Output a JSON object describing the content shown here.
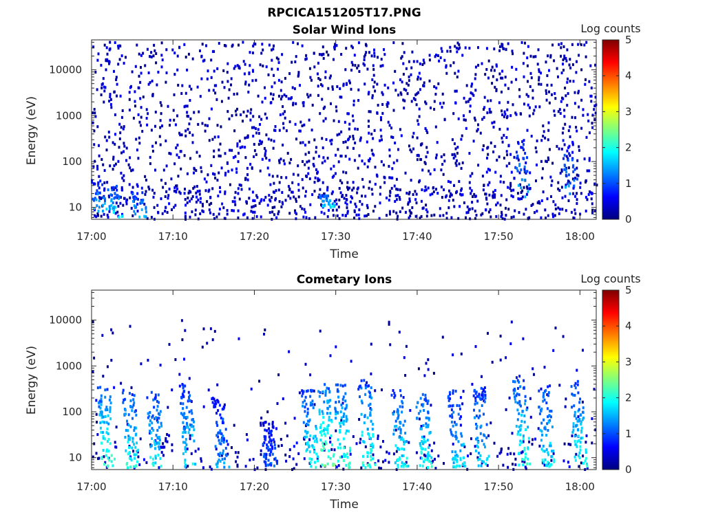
{
  "figure": {
    "title": "RPCICA151205T17.PNG"
  },
  "colormap": {
    "name": "jet",
    "stops": [
      "#00007f",
      "#0000ff",
      "#007fff",
      "#00ffff",
      "#7fff7f",
      "#ffff00",
      "#ff7f00",
      "#ff0000",
      "#7f0000"
    ]
  },
  "chart_data": [
    {
      "type": "heatmap",
      "title": "Solar Wind Ions",
      "xlabel": "Time",
      "ylabel": "Energy (eV)",
      "x_range": [
        "17:00",
        "18:02"
      ],
      "x_ticks": [
        "17:00",
        "17:10",
        "17:20",
        "17:30",
        "17:40",
        "17:50",
        "18:00"
      ],
      "y_scale": "log",
      "y_range": [
        5.5,
        45000
      ],
      "y_ticks": [
        {
          "value": 10,
          "label": "10"
        },
        {
          "value": 100,
          "label": "100"
        },
        {
          "value": 1000,
          "label": "1000"
        },
        {
          "value": 10000,
          "label": "10000"
        }
      ],
      "colorbar": {
        "label": "Log counts",
        "range": [
          0,
          5
        ],
        "ticks": [
          "0",
          "1",
          "2",
          "3",
          "4",
          "5"
        ]
      },
      "background_noise": {
        "typical_log_counts": [
          0,
          0.6
        ],
        "energy_range": [
          5.5,
          40000
        ]
      },
      "features": [
        {
          "time": "17:01",
          "energy_range": [
            8,
            40
          ],
          "log_counts": 1.6
        },
        {
          "time": "17:03",
          "energy_range": [
            6,
            30
          ],
          "log_counts": 1.8
        },
        {
          "time": "17:06",
          "energy_range": [
            6,
            30
          ],
          "log_counts": 1.5
        },
        {
          "time": "17:29",
          "energy_range": [
            10,
            20
          ],
          "log_counts": 1.8
        },
        {
          "time": "17:53",
          "energy_range": [
            15,
            300
          ],
          "log_counts": 1.6
        },
        {
          "time": "17:59",
          "energy_range": [
            15,
            300
          ],
          "log_counts": 1.4
        }
      ]
    },
    {
      "type": "heatmap",
      "title": "Cometary Ions",
      "xlabel": "Time",
      "ylabel": "Energy (eV)",
      "x_range": [
        "17:00",
        "18:02"
      ],
      "x_ticks": [
        "17:00",
        "17:10",
        "17:20",
        "17:30",
        "17:40",
        "17:50",
        "18:00"
      ],
      "y_scale": "log",
      "y_range": [
        5.5,
        45000
      ],
      "y_ticks": [
        {
          "value": 10,
          "label": "10"
        },
        {
          "value": 100,
          "label": "100"
        },
        {
          "value": 1000,
          "label": "1000"
        },
        {
          "value": 10000,
          "label": "10000"
        }
      ],
      "colorbar": {
        "label": "Log counts",
        "range": [
          0,
          5
        ],
        "ticks": [
          "0",
          "1",
          "2",
          "3",
          "4",
          "5"
        ]
      },
      "background_noise": {
        "typical_log_counts": [
          0,
          0.6
        ],
        "energy_range": [
          5.5,
          10000
        ]
      },
      "features": [
        {
          "time": "17:02",
          "energy_range": [
            6,
            400
          ],
          "log_counts": 2.2
        },
        {
          "time": "17:05",
          "energy_range": [
            6,
            300
          ],
          "log_counts": 2.0
        },
        {
          "time": "17:08",
          "energy_range": [
            6,
            300
          ],
          "log_counts": 1.9
        },
        {
          "time": "17:12",
          "energy_range": [
            6,
            400
          ],
          "log_counts": 1.8
        },
        {
          "time": "17:16",
          "energy_range": [
            6,
            200
          ],
          "log_counts": 1.4
        },
        {
          "time": "17:22",
          "energy_range": [
            6,
            60
          ],
          "log_counts": 1.1
        },
        {
          "time": "17:27",
          "energy_range": [
            6,
            300
          ],
          "log_counts": 2.0
        },
        {
          "time": "17:29",
          "energy_range": [
            6,
            400
          ],
          "log_counts": 2.4
        },
        {
          "time": "17:31",
          "energy_range": [
            6,
            400
          ],
          "log_counts": 2.2
        },
        {
          "time": "17:34",
          "energy_range": [
            6,
            500
          ],
          "log_counts": 2.1
        },
        {
          "time": "17:38",
          "energy_range": [
            6,
            300
          ],
          "log_counts": 1.9
        },
        {
          "time": "17:41",
          "energy_range": [
            6,
            300
          ],
          "log_counts": 2.0
        },
        {
          "time": "17:45",
          "energy_range": [
            6,
            300
          ],
          "log_counts": 1.7
        },
        {
          "time": "17:48",
          "energy_range": [
            6,
            400
          ],
          "log_counts": 1.7
        },
        {
          "time": "17:53",
          "energy_range": [
            6,
            600
          ],
          "log_counts": 2.1
        },
        {
          "time": "17:56",
          "energy_range": [
            6,
            400
          ],
          "log_counts": 1.9
        },
        {
          "time": "18:00",
          "energy_range": [
            6,
            500
          ],
          "log_counts": 2.0
        }
      ]
    }
  ]
}
